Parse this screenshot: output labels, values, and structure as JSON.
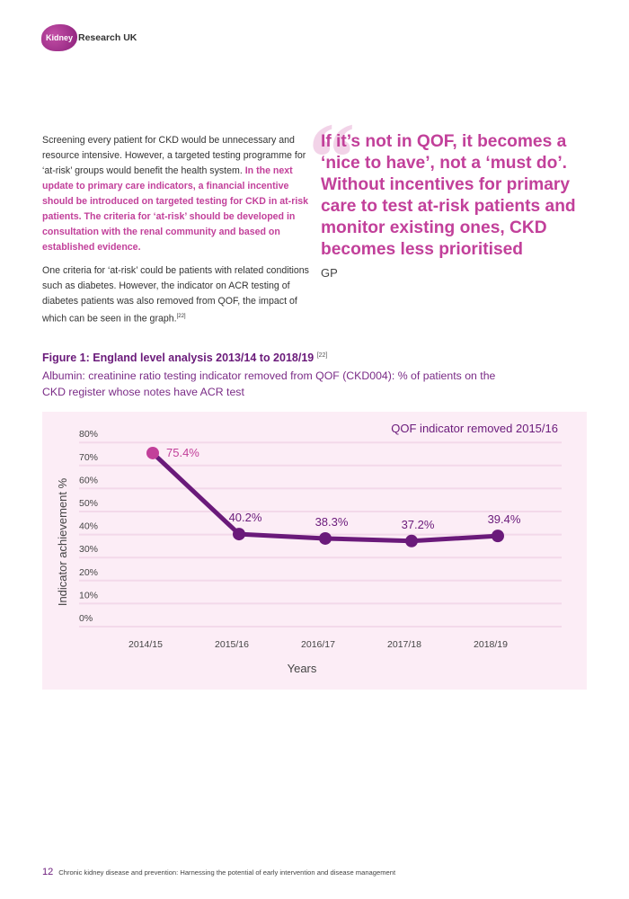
{
  "header": {
    "logo_text": "Kidney",
    "logo_rest": "Research UK"
  },
  "body": {
    "p1_plain": "Screening every patient for CKD would be unnecessary and resource intensive. However, a targeted testing programme for ‘at-risk’ groups would benefit the health system. ",
    "p1_bold": "In the next update to primary care indicators, a financial incentive should be introduced on targeted testing for CKD in at-risk patients. The criteria for ‘at-risk’ should be developed in consultation with the renal community and based on established evidence.",
    "p2": "One criteria for ‘at-risk’ could be patients with related conditions such as diabetes. However, the indicator on ACR testing of diabetes patients was also removed from QOF, the impact of which can be seen in the graph.",
    "p2_ref": "[22]"
  },
  "quote": {
    "text": "If it’s not in QOF, it becomes a ‘nice to have’, not a ‘must do’. Without incentives for primary care to test at-risk patients and monitor existing ones, CKD becomes less prioritised",
    "attribution": "GP"
  },
  "figure": {
    "title": "Figure 1: England level analysis 2013/14 to 2018/19",
    "title_ref": "[22]",
    "subtitle": "Albumin: creatinine ratio testing indicator removed from QOF (CKD004): % of patients on the CKD register whose notes have ACR test"
  },
  "chart_data": {
    "type": "line",
    "annotation": "QOF indicator removed 2015/16",
    "xlabel": "Years",
    "ylabel": "Indicator achievement %",
    "categories": [
      "2014/15",
      "2015/16",
      "2016/17",
      "2017/18",
      "2018/19"
    ],
    "values": [
      75.4,
      40.2,
      38.3,
      37.2,
      39.4
    ],
    "data_labels": [
      "75.4%",
      "40.2%",
      "38.3%",
      "37.2%",
      "39.4%"
    ],
    "yticks": [
      "0%",
      "10%",
      "20%",
      "30%",
      "40%",
      "50%",
      "60%",
      "70%",
      "80%"
    ],
    "ylim": [
      0,
      80
    ],
    "grid": true,
    "colors": {
      "line": "#6a1a7a",
      "first_point": "#c2409a",
      "background": "#fcedf6",
      "grid": "#f3d9ea"
    }
  },
  "footer": {
    "page": "12",
    "title": "Chronic kidney disease and prevention: Harnessing the potential of early intervention and disease management"
  }
}
